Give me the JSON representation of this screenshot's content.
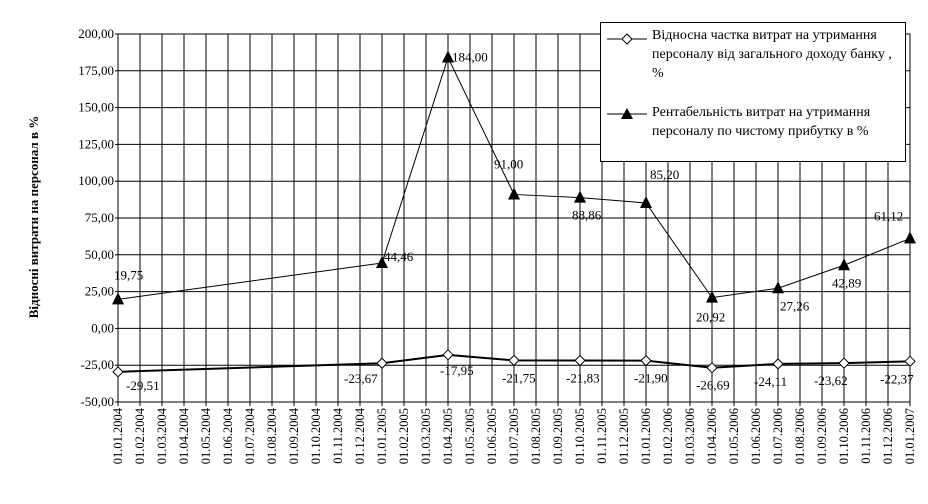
{
  "chart_data": {
    "type": "line",
    "ylabel": "Відносні витрати на персонал в %",
    "ylim": [
      -50,
      200
    ],
    "ytick_step": 25,
    "grid": true,
    "legend_position": "top-right",
    "x": [
      "01.01.2004",
      "01.02.2004",
      "01.03.2004",
      "01.04.2004",
      "01.05.2004",
      "01.06.2004",
      "01.07.2004",
      "01.08.2004",
      "01.09.2004",
      "01.10.2004",
      "01.11.2004",
      "01.12.2004",
      "01.01.2005",
      "01.02.2005",
      "01.03.2005",
      "01.04.2005",
      "01.05.2005",
      "01.06.2005",
      "01.07.2005",
      "01.08.2005",
      "01.09.2005",
      "01.10.2005",
      "01.11.2005",
      "01.12.2005",
      "01.01.2006",
      "01.02.2006",
      "01.03.2006",
      "01.04.2006",
      "01.05.2006",
      "01.06.2006",
      "01.07.2006",
      "01.08.2006",
      "01.09.2006",
      "01.10.2006",
      "01.11.2006",
      "01.12.2006",
      "01.01.2007"
    ],
    "series": [
      {
        "name": "Відносна частка витрат на утримання персоналу від загального доходу банку , %",
        "marker": "diamond",
        "color": "#000000",
        "points": [
          {
            "x": "01.01.2004",
            "y": -29.51,
            "label": "-29,51"
          },
          {
            "x": "01.01.2005",
            "y": -23.67,
            "label": "-23,67"
          },
          {
            "x": "01.04.2005",
            "y": -17.95,
            "label": "-17,95"
          },
          {
            "x": "01.07.2005",
            "y": -21.75,
            "label": "-21,75"
          },
          {
            "x": "01.10.2005",
            "y": -21.83,
            "label": "-21,83"
          },
          {
            "x": "01.01.2006",
            "y": -21.9,
            "label": "-21,90"
          },
          {
            "x": "01.04.2006",
            "y": -26.69,
            "label": "-26,69"
          },
          {
            "x": "01.07.2006",
            "y": -24.11,
            "label": "-24,11"
          },
          {
            "x": "01.10.2006",
            "y": -23.62,
            "label": "-23,62"
          },
          {
            "x": "01.01.2007",
            "y": -22.37,
            "label": "-22,37"
          }
        ]
      },
      {
        "name": "Рентабельність витрат на утримання персоналу по чистому прибутку  в %",
        "marker": "triangle",
        "color": "#000000",
        "points": [
          {
            "x": "01.01.2004",
            "y": 19.75,
            "label": "19,75"
          },
          {
            "x": "01.01.2005",
            "y": 44.46,
            "label": "44,46"
          },
          {
            "x": "01.04.2005",
            "y": 184.0,
            "label": "184,00"
          },
          {
            "x": "01.07.2005",
            "y": 91.0,
            "label": "91,00"
          },
          {
            "x": "01.10.2005",
            "y": 88.86,
            "label": "88,86"
          },
          {
            "x": "01.01.2006",
            "y": 85.2,
            "label": "85,20"
          },
          {
            "x": "01.04.2006",
            "y": 20.92,
            "label": "20,92"
          },
          {
            "x": "01.07.2006",
            "y": 27.26,
            "label": "27,26"
          },
          {
            "x": "01.10.2006",
            "y": 42.89,
            "label": "42,89"
          },
          {
            "x": "01.01.2007",
            "y": 61.12,
            "label": "61,12"
          }
        ]
      }
    ]
  },
  "legend": {
    "item1_line1": "Відносна частка витрат на утримання",
    "item1_line2": "персоналу від загального доходу банку ,",
    "item1_line3": "%",
    "item2_line1": "Рентабельність витрат на утримання",
    "item2_line2": "персоналу по чистому прибутку  в %"
  }
}
